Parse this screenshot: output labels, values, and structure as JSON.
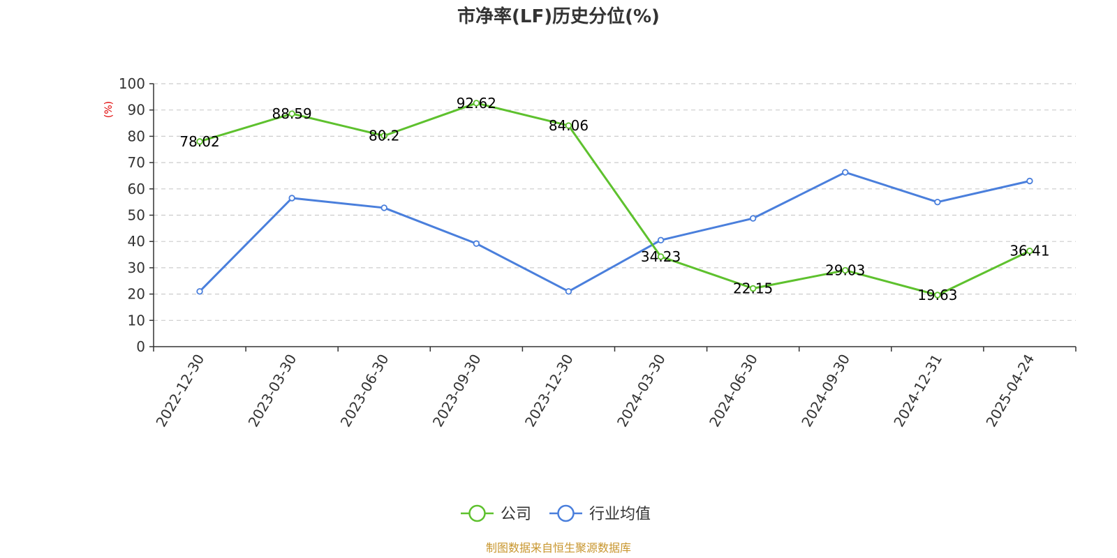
{
  "chart_data": {
    "type": "line",
    "title": "市净率(LF)历史分位(%)",
    "y_unit": "(%)",
    "ylim": [
      0,
      100
    ],
    "y_ticks": [
      "0",
      "10",
      "20",
      "30",
      "40",
      "50",
      "60",
      "70",
      "80",
      "90",
      "100"
    ],
    "categories": [
      "2022-12-30",
      "2023-03-30",
      "2023-06-30",
      "2023-09-30",
      "2023-12-30",
      "2024-03-30",
      "2024-06-30",
      "2024-09-30",
      "2024-12-31",
      "2025-04-24"
    ],
    "grid": true,
    "legend_position": "bottom-center",
    "series": [
      {
        "name": "公司",
        "color": "#5ec12e",
        "values": [
          78.02,
          88.59,
          80.2,
          92.62,
          84.06,
          34.23,
          22.15,
          29.03,
          19.63,
          36.41
        ],
        "labels": [
          "78.02",
          "88.59",
          "80.2",
          "92.62",
          "84.06",
          "34.23",
          "22.15",
          "29.03",
          "19.63",
          "36.41"
        ]
      },
      {
        "name": "行业均值",
        "color": "#4a7fdc",
        "values": [
          21.0,
          56.5,
          52.8,
          39.2,
          21.0,
          40.5,
          48.8,
          66.3,
          55.0,
          63.0
        ]
      }
    ],
    "source": "制图数据来自恒生聚源数据库"
  }
}
